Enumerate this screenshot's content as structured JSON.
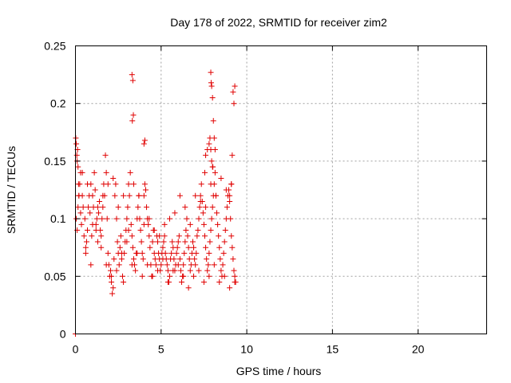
{
  "chart_data": {
    "type": "scatter",
    "title": "Day 178 of 2022, SRMTID for receiver zim2",
    "xlabel": "GPS time / hours",
    "ylabel": "SRMTID / TECUs",
    "xlim": [
      0,
      24
    ],
    "ylim": [
      0,
      0.25
    ],
    "xticks": [
      0,
      5,
      10,
      15,
      20
    ],
    "yticks": [
      0,
      0.05,
      0.1,
      0.15,
      0.2,
      0.25
    ],
    "xtick_labels": [
      "0",
      "5",
      "10",
      "15",
      "20"
    ],
    "ytick_labels": [
      "0",
      "0.05",
      "0.1",
      "0.15",
      "0.2",
      "0.25"
    ],
    "grid": true,
    "marker": "plus",
    "color": "#e00000",
    "series": [
      {
        "x": [
          0.0,
          0.02,
          0.05,
          0.08,
          0.1,
          0.12,
          0.15,
          0.18,
          0.2,
          0.05,
          0.1,
          0.15,
          0.2,
          0.25,
          0.3,
          0.35,
          0.4,
          0.45,
          0.5,
          0.55,
          0.6,
          0.65,
          0.7,
          0.75,
          0.8,
          0.85,
          0.9,
          0.95,
          1.0,
          1.05,
          1.1,
          1.15,
          1.2,
          1.25,
          1.3,
          1.35,
          1.4,
          1.45,
          1.5,
          1.55,
          1.6,
          1.65,
          1.7,
          1.75,
          1.8,
          1.85,
          1.9,
          1.95,
          2.0,
          2.05,
          2.1,
          2.15,
          2.2,
          2.25,
          2.3,
          2.35,
          2.4,
          2.45,
          2.5,
          2.55,
          2.6,
          2.65,
          2.7,
          2.75,
          2.8,
          2.85,
          2.9,
          2.95,
          3.0,
          3.05,
          3.1,
          3.15,
          3.2,
          3.25,
          3.3,
          3.35,
          3.4,
          3.45,
          3.5,
          3.55,
          3.6,
          3.65,
          3.7,
          3.75,
          3.8,
          3.85,
          3.9,
          3.95,
          4.0,
          4.05,
          4.1,
          4.15,
          4.2,
          4.25,
          4.3,
          4.35,
          4.4,
          4.45,
          4.5,
          4.55,
          4.6,
          4.65,
          4.7,
          4.75,
          4.8,
          4.85,
          4.9,
          4.95,
          5.0,
          5.05,
          5.1,
          5.15,
          5.2,
          5.25,
          5.3,
          5.35,
          5.4,
          5.45,
          5.5,
          5.55,
          5.6,
          5.65,
          5.7,
          5.75,
          5.8,
          5.85,
          5.9,
          5.95,
          6.0,
          6.05,
          6.1,
          6.15,
          6.2,
          6.25,
          6.3,
          6.35,
          6.4,
          6.45,
          6.5,
          6.55,
          6.6,
          6.65,
          6.7,
          6.75,
          6.8,
          6.85,
          6.9,
          6.95,
          7.0,
          7.05,
          7.1,
          7.15,
          7.2,
          7.25,
          7.3,
          7.35,
          7.4,
          7.45,
          7.5,
          7.55,
          7.6,
          7.65,
          7.7,
          7.75,
          7.8,
          7.85,
          7.9,
          7.95,
          8.0,
          8.05,
          8.1,
          8.15,
          8.2,
          8.25,
          8.3,
          8.35,
          8.4,
          8.45,
          8.5,
          8.55,
          8.6,
          8.65,
          8.7,
          8.75,
          8.8,
          8.85,
          8.9,
          8.95,
          9.0,
          9.05,
          9.1,
          9.15,
          9.2,
          9.25,
          9.3,
          9.35,
          0.3,
          0.6,
          0.9,
          1.2,
          1.5,
          1.8,
          2.1,
          2.4,
          2.7,
          3.0,
          3.3,
          3.6,
          3.9,
          4.2,
          4.5,
          4.8,
          5.1,
          5.4,
          5.7,
          6.0,
          6.3,
          6.6,
          6.9,
          7.2,
          7.5,
          7.8,
          8.1,
          8.4,
          8.7,
          9.0,
          9.3,
          0.4,
          0.7,
          1.0,
          1.3,
          1.6,
          1.9,
          2.2,
          2.5,
          2.8,
          3.1,
          3.4,
          3.7,
          4.0,
          4.3,
          4.6,
          4.9,
          5.2,
          5.5,
          5.8,
          6.1,
          6.4,
          6.7,
          7.0,
          7.3,
          7.6,
          7.9,
          8.2,
          8.5,
          8.8,
          9.1,
          3.3,
          3.35,
          3.38,
          3.32,
          4.0,
          4.05,
          4.1,
          7.55,
          7.6,
          7.7,
          7.8,
          7.85,
          7.9,
          8.0,
          9.0,
          9.1,
          9.15,
          9.2,
          9.25,
          9.3
        ],
        "y": [
          0.0,
          0.17,
          0.165,
          0.155,
          0.15,
          0.16,
          0.145,
          0.13,
          0.12,
          0.1,
          0.09,
          0.11,
          0.12,
          0.13,
          0.105,
          0.095,
          0.12,
          0.11,
          0.085,
          0.1,
          0.075,
          0.08,
          0.09,
          0.11,
          0.12,
          0.105,
          0.13,
          0.085,
          0.095,
          0.11,
          0.14,
          0.125,
          0.09,
          0.1,
          0.08,
          0.105,
          0.115,
          0.09,
          0.085,
          0.1,
          0.11,
          0.13,
          0.12,
          0.155,
          0.14,
          0.1,
          0.07,
          0.06,
          0.05,
          0.055,
          0.045,
          0.035,
          0.04,
          0.065,
          0.12,
          0.13,
          0.1,
          0.08,
          0.07,
          0.06,
          0.075,
          0.085,
          0.065,
          0.05,
          0.045,
          0.07,
          0.08,
          0.09,
          0.1,
          0.11,
          0.13,
          0.12,
          0.14,
          0.095,
          0.085,
          0.075,
          0.065,
          0.06,
          0.055,
          0.07,
          0.1,
          0.11,
          0.12,
          0.1,
          0.09,
          0.08,
          0.07,
          0.065,
          0.12,
          0.13,
          0.125,
          0.11,
          0.1,
          0.095,
          0.085,
          0.075,
          0.06,
          0.05,
          0.08,
          0.09,
          0.07,
          0.065,
          0.06,
          0.085,
          0.08,
          0.07,
          0.065,
          0.055,
          0.06,
          0.07,
          0.075,
          0.08,
          0.085,
          0.07,
          0.065,
          0.06,
          0.055,
          0.045,
          0.05,
          0.065,
          0.07,
          0.08,
          0.075,
          0.065,
          0.055,
          0.06,
          0.07,
          0.075,
          0.08,
          0.085,
          0.065,
          0.055,
          0.045,
          0.05,
          0.06,
          0.07,
          0.08,
          0.09,
          0.1,
          0.085,
          0.075,
          0.065,
          0.055,
          0.06,
          0.07,
          0.08,
          0.075,
          0.065,
          0.06,
          0.07,
          0.085,
          0.09,
          0.1,
          0.11,
          0.12,
          0.13,
          0.115,
          0.105,
          0.095,
          0.085,
          0.075,
          0.065,
          0.055,
          0.06,
          0.07,
          0.08,
          0.09,
          0.1,
          0.11,
          0.12,
          0.13,
          0.14,
          0.12,
          0.105,
          0.095,
          0.085,
          0.075,
          0.065,
          0.055,
          0.05,
          0.06,
          0.07,
          0.08,
          0.09,
          0.1,
          0.11,
          0.12,
          0.125,
          0.115,
          0.1,
          0.085,
          0.075,
          0.065,
          0.055,
          0.05,
          0.045,
          0.14,
          0.07,
          0.06,
          0.095,
          0.075,
          0.06,
          0.05,
          0.055,
          0.07,
          0.08,
          0.06,
          0.07,
          0.05,
          0.06,
          0.05,
          0.055,
          0.065,
          0.045,
          0.055,
          0.06,
          0.05,
          0.04,
          0.05,
          0.055,
          0.045,
          0.05,
          0.06,
          0.045,
          0.05,
          0.04,
          0.045,
          0.14,
          0.13,
          0.12,
          0.11,
          0.12,
          0.13,
          0.135,
          0.11,
          0.12,
          0.09,
          0.13,
          0.12,
          0.095,
          0.1,
          0.09,
          0.085,
          0.095,
          0.1,
          0.105,
          0.12,
          0.11,
          0.095,
          0.12,
          0.115,
          0.11,
          0.13,
          0.12,
          0.135,
          0.125,
          0.13,
          0.225,
          0.22,
          0.19,
          0.185,
          0.165,
          0.168,
          0.125,
          0.14,
          0.155,
          0.16,
          0.165,
          0.17,
          0.16,
          0.145,
          0.12,
          0.13,
          0.155,
          0.21,
          0.2,
          0.215
        ],
        "x2": [
          7.9,
          7.92,
          7.95,
          8.0,
          8.05,
          8.1,
          8.15,
          7.95,
          8.02
        ],
        "y2": [
          0.227,
          0.218,
          0.215,
          0.205,
          0.185,
          0.17,
          0.16,
          0.15,
          0.145
        ]
      }
    ]
  }
}
